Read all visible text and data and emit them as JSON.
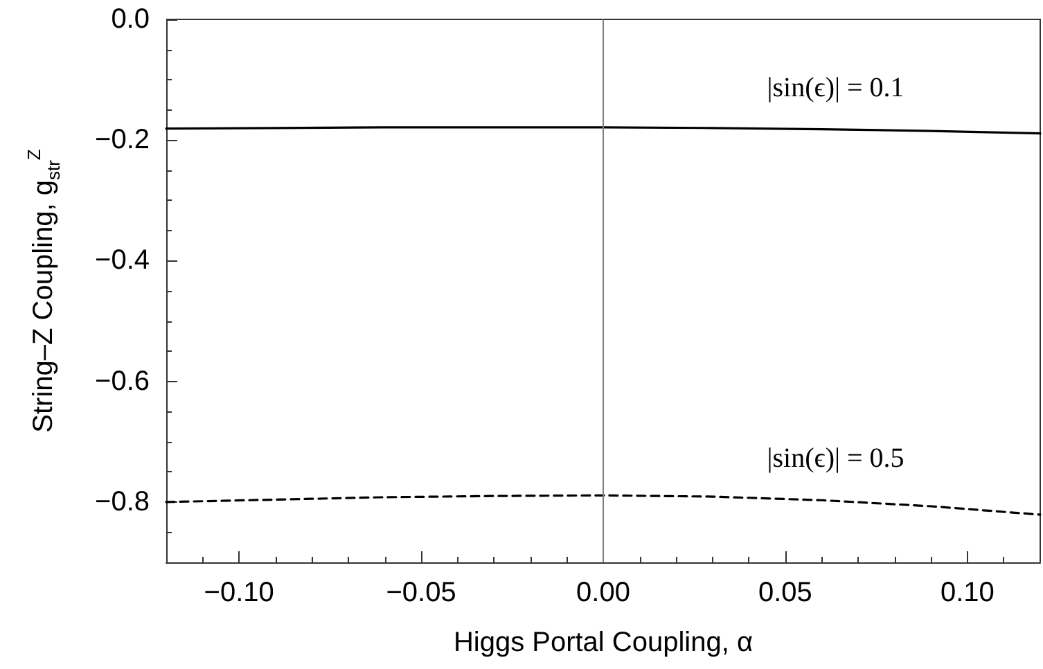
{
  "chart_data": {
    "type": "line",
    "xlabel": "Higgs Portal Coupling, α",
    "ylabel": "String–Z Coupling, g$_{str}$$^{Z}$",
    "x": [
      -0.12,
      -0.09,
      -0.06,
      -0.03,
      0,
      0.03,
      0.06,
      0.09,
      0.12
    ],
    "series": [
      {
        "name": "|sin(ϵ)| = 0.1",
        "color": "#000000",
        "line_style": "solid",
        "values": [
          -0.181,
          -0.18,
          -0.179,
          -0.179,
          -0.179,
          -0.18,
          -0.182,
          -0.185,
          -0.189
        ]
      },
      {
        "name": "|sin(ϵ)| = 0.5",
        "color": "#000000",
        "line_style": "dashed",
        "values": [
          -0.8,
          -0.796,
          -0.792,
          -0.79,
          -0.789,
          -0.791,
          -0.797,
          -0.807,
          -0.821
        ]
      }
    ],
    "ref_lines": [
      {
        "axis": "x",
        "value": 0,
        "color": "#808080"
      }
    ],
    "xlim": [
      -0.12,
      0.12
    ],
    "xticks": [
      {
        "value": -0.1,
        "label": "−0.10"
      },
      {
        "value": -0.05,
        "label": "−0.05"
      },
      {
        "value": 0,
        "label": "0.00"
      },
      {
        "value": 0.05,
        "label": "0.05"
      },
      {
        "value": 0.1,
        "label": "0.10"
      }
    ],
    "ylim": [
      -0.9,
      0
    ],
    "yticks": [
      {
        "value": -0.8,
        "label": "−0.8"
      },
      {
        "value": -0.6,
        "label": "−0.6"
      },
      {
        "value": -0.4,
        "label": "−0.4"
      },
      {
        "value": -0.2,
        "label": "−0.2"
      },
      {
        "value": 0,
        "label": "0.0"
      }
    ],
    "grid": false,
    "legend": false,
    "marker": "none"
  }
}
